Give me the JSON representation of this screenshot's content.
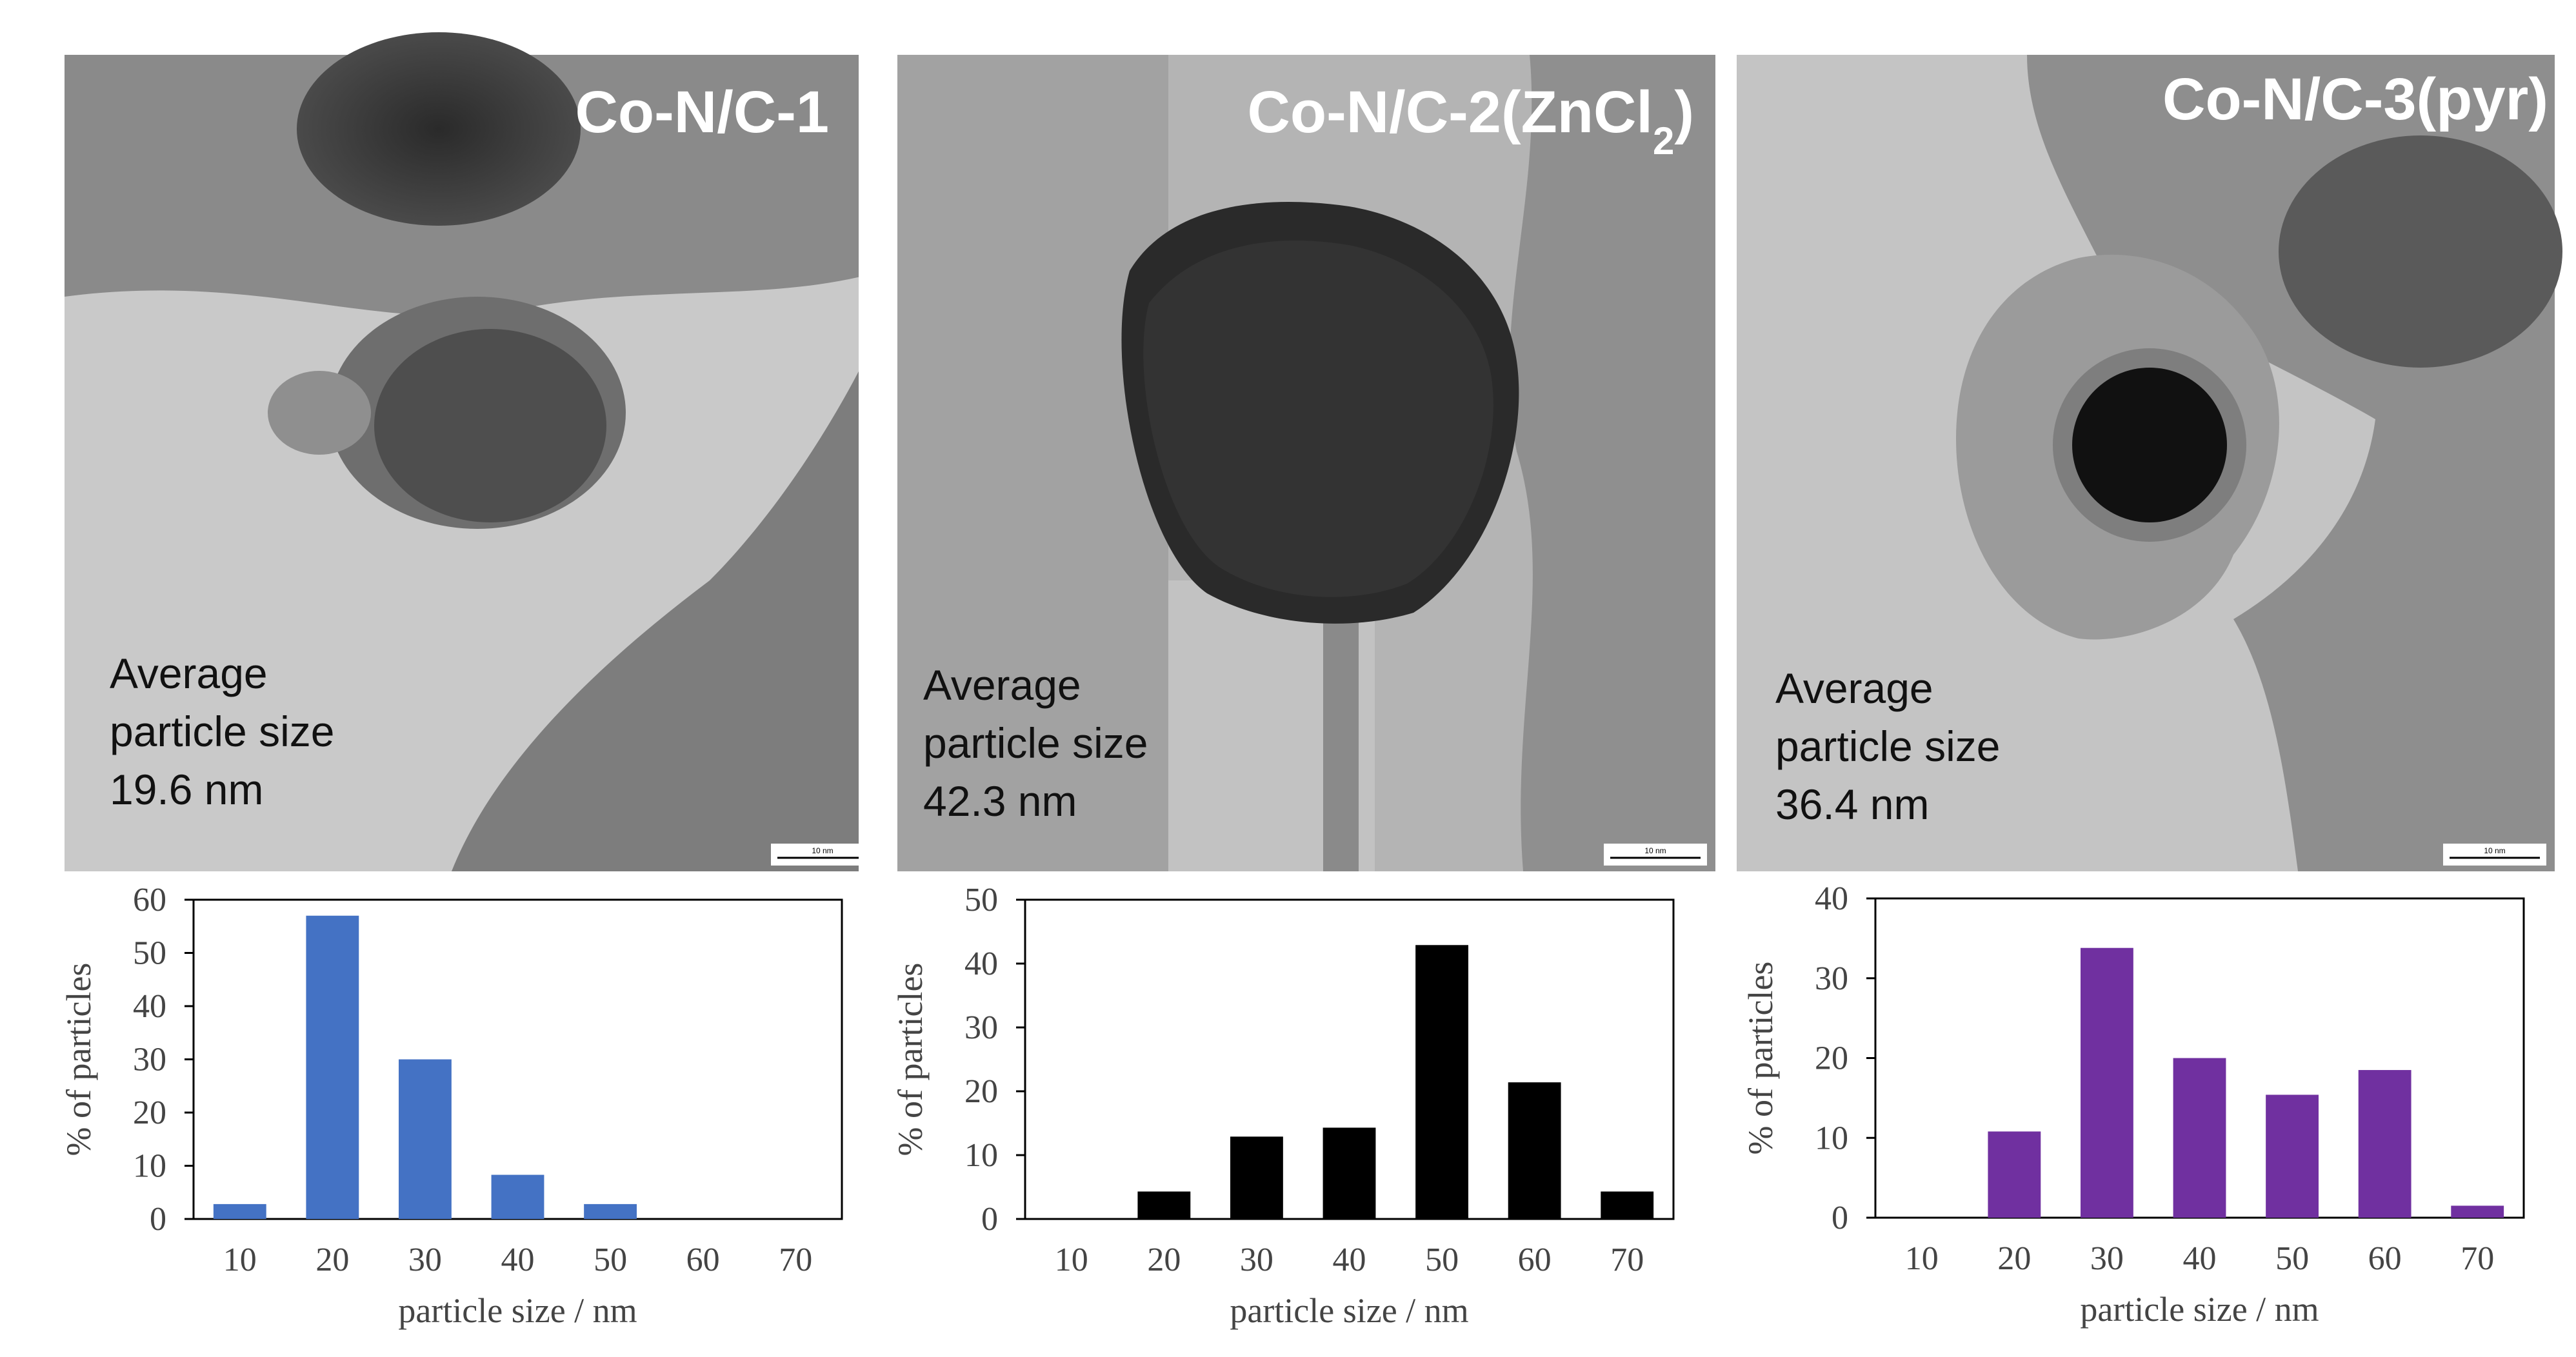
{
  "figure": {
    "panels": [
      {
        "id": "panel-1",
        "tem": {
          "title_main": "Co-N/C-1",
          "title_sub": "",
          "title_tail": "",
          "note_line1": "Average",
          "note_line2": "particle size",
          "note_line3": "19.6 nm",
          "scale_label": "10 nm"
        },
        "bar_color": "#4472C4"
      },
      {
        "id": "panel-2",
        "tem": {
          "title_main": "Co-N/C-2(ZnCl",
          "title_sub": "2",
          "title_tail": ")",
          "note_line1": "Average",
          "note_line2": "particle size",
          "note_line3": "42.3 nm",
          "scale_label": "10 nm"
        },
        "bar_color": "#000000"
      },
      {
        "id": "panel-3",
        "tem": {
          "title_main": "Co-N/C-3(pyr)",
          "title_sub": "",
          "title_tail": "",
          "note_line1": "Average",
          "note_line2": "particle size",
          "note_line3": "36.4 nm",
          "scale_label": "10 nm"
        },
        "bar_color": "#7030A0"
      }
    ]
  },
  "chart_data": [
    {
      "type": "bar",
      "title": "",
      "xlabel": "particle size / nm",
      "ylabel": "% of particles",
      "categories": [
        "10",
        "20",
        "30",
        "40",
        "50",
        "60",
        "70"
      ],
      "values": [
        2.8,
        57,
        30,
        8.3,
        2.8,
        0,
        0
      ],
      "ylim": [
        0,
        60
      ],
      "yticks": [
        0,
        10,
        20,
        30,
        40,
        50,
        60
      ],
      "grid": false,
      "color": "#4472C4"
    },
    {
      "type": "bar",
      "title": "",
      "xlabel": "particle size / nm",
      "ylabel": "% of particles",
      "categories": [
        "10",
        "20",
        "30",
        "40",
        "50",
        "60",
        "70"
      ],
      "values": [
        0,
        4.3,
        12.9,
        14.3,
        42.9,
        21.4,
        4.3
      ],
      "ylim": [
        0,
        50
      ],
      "yticks": [
        0,
        10,
        20,
        30,
        40,
        50
      ],
      "grid": false,
      "color": "#000000"
    },
    {
      "type": "bar",
      "title": "",
      "xlabel": "particle size / nm",
      "ylabel": "% of particles",
      "categories": [
        "10",
        "20",
        "30",
        "40",
        "50",
        "60",
        "70"
      ],
      "values": [
        0,
        10.8,
        33.8,
        20,
        15.4,
        18.5,
        1.5
      ],
      "ylim": [
        0,
        40
      ],
      "yticks": [
        0,
        10,
        20,
        30,
        40
      ],
      "grid": false,
      "color": "#7030A0"
    }
  ]
}
